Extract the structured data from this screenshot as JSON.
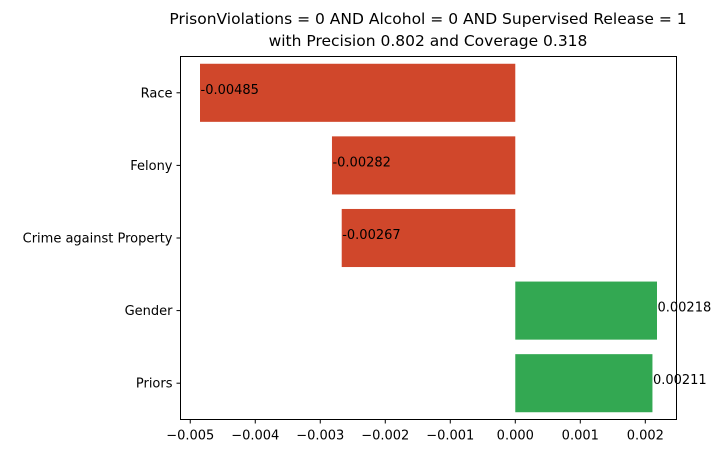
{
  "colors": {
    "negative": "#d0472b",
    "positive": "#33a852",
    "axis": "#000000",
    "background": "#ffffff"
  },
  "chart_data": {
    "type": "bar",
    "orientation": "horizontal",
    "title": "PrisonViolations = 0 AND Alcohol = 0 AND Supervised Release = 1",
    "subtitle": "with Precision 0.802 and Coverage 0.318",
    "xlabel": "",
    "ylabel": "",
    "xlim": [
      -0.00515,
      0.00248
    ],
    "xticks": [
      -0.005,
      -0.004,
      -0.003,
      -0.002,
      -0.001,
      0.0,
      0.001,
      0.002
    ],
    "xtick_labels": [
      "−0.005",
      "−0.004",
      "−0.003",
      "−0.002",
      "−0.001",
      "0.000",
      "0.001",
      "0.002"
    ],
    "categories": [
      "Race",
      "Felony",
      "Crime against Property",
      "Gender",
      "Priors"
    ],
    "values": [
      -0.00485,
      -0.00282,
      -0.00267,
      0.00218,
      0.00211
    ],
    "value_labels": [
      "-0.00485",
      "-0.00282",
      "-0.00267",
      "0.00218",
      "0.00211"
    ],
    "grid": false,
    "legend": "none"
  }
}
